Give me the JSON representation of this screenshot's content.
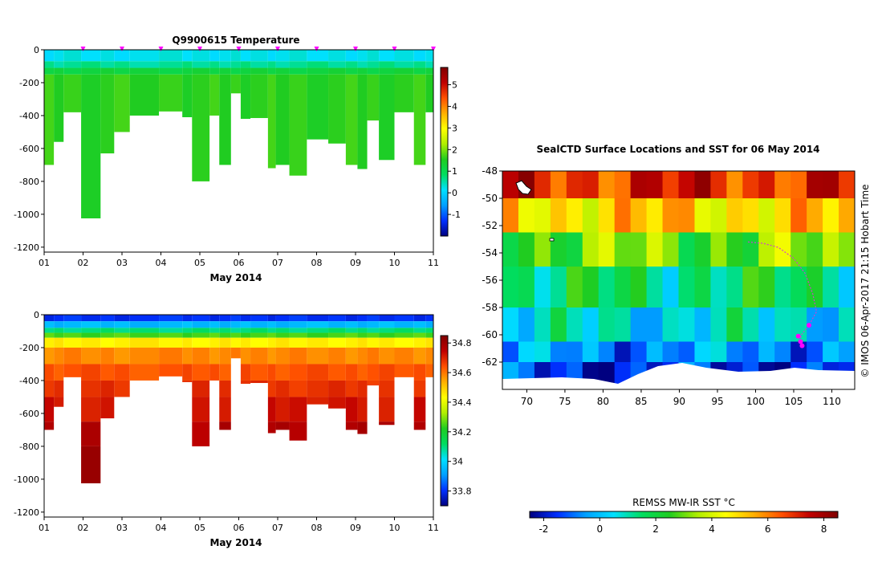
{
  "chart_data": [
    {
      "type": "heatmap",
      "name": "temperature-section",
      "title": "Q9900615  Temperature",
      "xlabel": "May 2014",
      "x_ticks": [
        "01",
        "02",
        "03",
        "04",
        "05",
        "06",
        "07",
        "08",
        "09",
        "10",
        "11"
      ],
      "xlim": [
        1,
        11
      ],
      "y_ticks": [
        "0",
        "-200",
        "-400",
        "-600",
        "-800",
        "-1000",
        "-1200"
      ],
      "ylim": [
        -1230,
        0
      ],
      "profiles": {
        "starts": [
          1.0,
          1.25,
          1.5,
          1.95,
          2.45,
          2.8,
          3.2,
          3.95,
          4.55,
          4.8,
          5.25,
          5.5,
          5.8,
          6.05,
          6.3,
          6.75,
          6.95,
          7.3,
          7.75,
          8.3,
          8.75,
          9.05,
          9.3,
          9.6,
          10.0,
          10.5,
          10.8
        ],
        "depths": [
          700,
          560,
          380,
          1025,
          630,
          500,
          400,
          375,
          410,
          800,
          400,
          700,
          265,
          420,
          415,
          720,
          700,
          765,
          545,
          570,
          700,
          725,
          430,
          670,
          380,
          700,
          380
        ]
      },
      "surface_markers": [
        2,
        3,
        4,
        5,
        6,
        7,
        8,
        9,
        10,
        11
      ],
      "colorbar": {
        "ticks": [
          "5",
          "4",
          "3",
          "2",
          "1",
          "0",
          "-1"
        ],
        "values": [
          5,
          4,
          3,
          2,
          1,
          0,
          -1
        ],
        "range": [
          -2,
          5.8
        ],
        "colors": [
          "#000080",
          "#0030ff",
          "#00a0ff",
          "#00e0ff",
          "#00dd60",
          "#20cc20",
          "#b0ee00",
          "#ffff00",
          "#ffb000",
          "#ff5000",
          "#c00000",
          "#800000"
        ]
      },
      "layers": [
        {
          "to_depth": 70,
          "value": 0.2
        },
        {
          "to_depth": 110,
          "value": 0.6
        },
        {
          "to_depth": 150,
          "value": 1.2
        },
        {
          "to_depth": 1100,
          "value": 1.6
        }
      ]
    },
    {
      "type": "heatmap",
      "name": "salinity-section",
      "xlabel": "May 2014",
      "x_ticks": [
        "01",
        "02",
        "03",
        "04",
        "05",
        "06",
        "07",
        "08",
        "09",
        "10",
        "11"
      ],
      "xlim": [
        1,
        11
      ],
      "y_ticks": [
        "0",
        "-200",
        "-400",
        "-600",
        "-800",
        "-1000",
        "-1200"
      ],
      "ylim": [
        -1230,
        0
      ],
      "colorbar": {
        "ticks": [
          "34.8",
          "34.6",
          "34.4",
          "34.2",
          "34",
          "33.8"
        ],
        "values": [
          34.8,
          34.6,
          34.4,
          34.2,
          34.0,
          33.8
        ],
        "range": [
          33.7,
          34.85
        ],
        "colors": [
          "#000080",
          "#0030ff",
          "#00a0ff",
          "#00e0ff",
          "#00dd60",
          "#20cc20",
          "#b0ee00",
          "#ffff00",
          "#ffb000",
          "#ff5000",
          "#c00000",
          "#800000"
        ]
      },
      "layers": [
        {
          "to_depth": 40,
          "value": 33.8
        },
        {
          "to_depth": 80,
          "value": 33.95
        },
        {
          "to_depth": 110,
          "value": 34.1
        },
        {
          "to_depth": 140,
          "value": 34.25
        },
        {
          "to_depth": 200,
          "value": 34.45
        },
        {
          "to_depth": 300,
          "value": 34.58
        },
        {
          "to_depth": 400,
          "value": 34.64
        },
        {
          "to_depth": 500,
          "value": 34.68
        },
        {
          "to_depth": 650,
          "value": 34.72
        },
        {
          "to_depth": 800,
          "value": 34.77
        },
        {
          "to_depth": 1100,
          "value": 34.82
        }
      ]
    },
    {
      "type": "heatmap",
      "name": "surface-sst-map",
      "title": "SealCTD Surface Locations and SST for 06 May 2014",
      "colorbar_title": "REMSS MW-IR SST °C",
      "x_ticks": [
        "70",
        "75",
        "80",
        "85",
        "90",
        "95",
        "100",
        "105",
        "110"
      ],
      "x_values": [
        70,
        75,
        80,
        85,
        90,
        95,
        100,
        105,
        110
      ],
      "xlim": [
        66.8,
        113
      ],
      "y_ticks": [
        "-48",
        "-50",
        "-52",
        "-54",
        "-56",
        "-58",
        "-60",
        "-62"
      ],
      "y_values": [
        -48,
        -50,
        -52,
        -54,
        -56,
        -58,
        -60,
        -62
      ],
      "ylim": [
        -64,
        -48
      ],
      "colorbar": {
        "ticks": [
          "-2",
          "0",
          "2",
          "4",
          "6",
          "8"
        ],
        "values": [
          -2,
          0,
          2,
          4,
          6,
          8
        ],
        "range": [
          -2.5,
          8.5
        ],
        "colors": [
          "#000080",
          "#0030ff",
          "#00a0ff",
          "#00e0ff",
          "#00dd60",
          "#20cc20",
          "#b0ee00",
          "#ffff00",
          "#ffb000",
          "#ff5000",
          "#c00000",
          "#800000"
        ]
      },
      "sst_bands": [
        {
          "lat_from": -48,
          "lat_to": -50,
          "sst": 7
        },
        {
          "lat_from": -50,
          "lat_to": -52.5,
          "sst": 5
        },
        {
          "lat_from": -52.5,
          "lat_to": -55,
          "sst": 3
        },
        {
          "lat_from": -55,
          "lat_to": -58,
          "sst": 1.6
        },
        {
          "lat_from": -58,
          "lat_to": -60.5,
          "sst": 0.6
        },
        {
          "lat_from": -60.5,
          "lat_to": -62,
          "sst": -0.6
        },
        {
          "lat_from": -62,
          "lat_to": -64,
          "sst": -1.6
        }
      ],
      "track": [
        [
          99,
          -53.2
        ],
        [
          101,
          -53.3
        ],
        [
          103,
          -53.6
        ],
        [
          105,
          -54.4
        ],
        [
          106.5,
          -55.5
        ],
        [
          107.5,
          -57
        ],
        [
          108,
          -58.3
        ],
        [
          107,
          -59.3
        ],
        [
          106,
          -60
        ],
        [
          105.8,
          -60.5
        ]
      ],
      "seal_positions": [
        [
          105.6,
          -60.1
        ],
        [
          105.9,
          -60.5
        ],
        [
          106.1,
          -60.8
        ],
        [
          107,
          -59.3
        ]
      ]
    }
  ],
  "watermark": "© IMOS 06-Apr-2017 21:15 Hobart Time"
}
